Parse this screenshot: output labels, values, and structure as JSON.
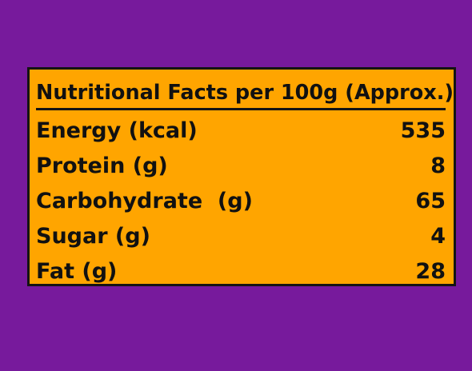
{
  "table": {
    "title": "Nutritional Facts per 100g (Approx.)",
    "rows": [
      {
        "label": "Energy (kcal)",
        "value": "535"
      },
      {
        "label": "Protein (g)",
        "value": "8"
      },
      {
        "label": "Carbohydrate  (g)",
        "value": "65"
      },
      {
        "label": "Sugar (g)",
        "value": "4"
      },
      {
        "label": "Fat (g)",
        "value": "28"
      }
    ]
  },
  "colors": {
    "background": "#771a9c",
    "panel": "#ffa500",
    "border": "#141414",
    "text": "#111111"
  }
}
